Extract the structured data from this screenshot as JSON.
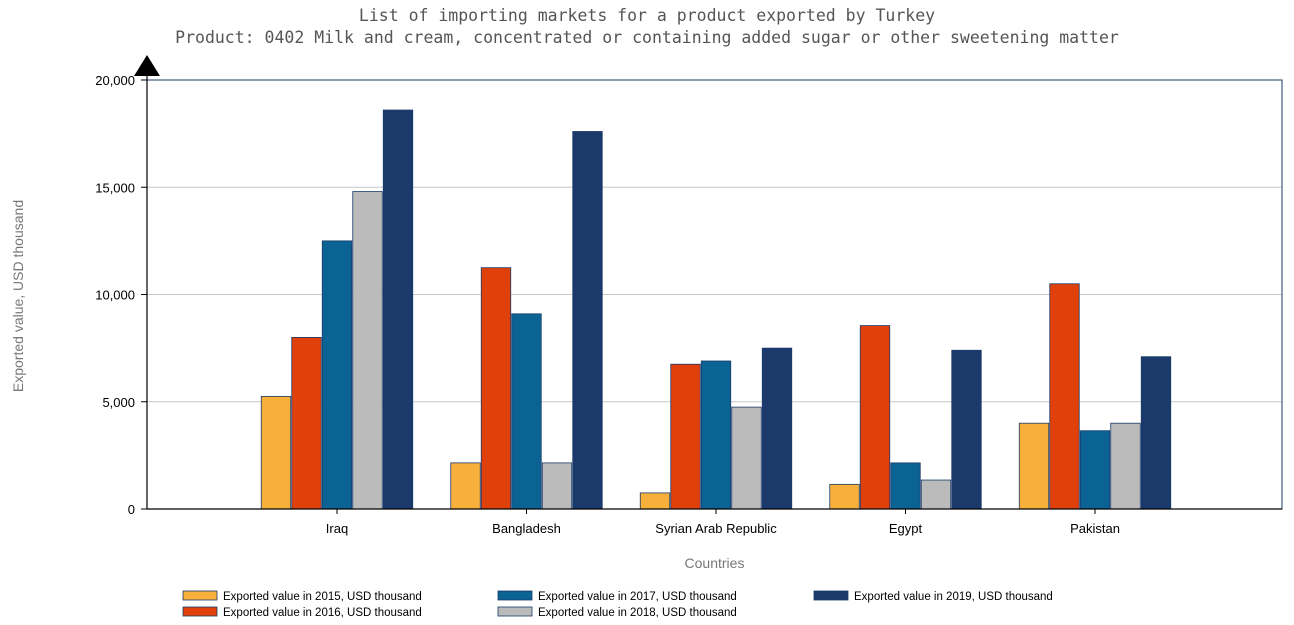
{
  "chart_data": {
    "type": "bar",
    "title": "List of importing markets for a product exported by Turkey",
    "subtitle": "Product: 0402 Milk and cream, concentrated or containing added sugar or other sweetening matter",
    "xlabel": "Countries",
    "ylabel": "Exported value, USD thousand",
    "ylim": [
      0,
      20000
    ],
    "yticks": [
      "0",
      "5,000",
      "10,000",
      "15,000",
      "20,000"
    ],
    "categories": [
      "Iraq",
      "Bangladesh",
      "Syrian Arab Republic",
      "Egypt",
      "Pakistan"
    ],
    "series": [
      {
        "name": "Exported value in 2015, USD thousand",
        "color": "#f8b03c",
        "values": [
          5250,
          2150,
          750,
          1150,
          4000
        ]
      },
      {
        "name": "Exported value in 2016, USD thousand",
        "color": "#e0410b",
        "values": [
          8000,
          11250,
          6750,
          8550,
          10500
        ]
      },
      {
        "name": "Exported value in 2017, USD thousand",
        "color": "#0b6393",
        "values": [
          12500,
          9100,
          6900,
          2150,
          3650
        ]
      },
      {
        "name": "Exported value in 2018, USD thousand",
        "color": "#bbbbbb",
        "values": [
          14800,
          2150,
          4750,
          1350,
          4000
        ]
      },
      {
        "name": "Exported value in 2019, USD thousand",
        "color": "#1b3a6b",
        "values": [
          18600,
          17600,
          7500,
          7400,
          7100
        ]
      }
    ],
    "grid": true,
    "legend_position": "bottom"
  }
}
